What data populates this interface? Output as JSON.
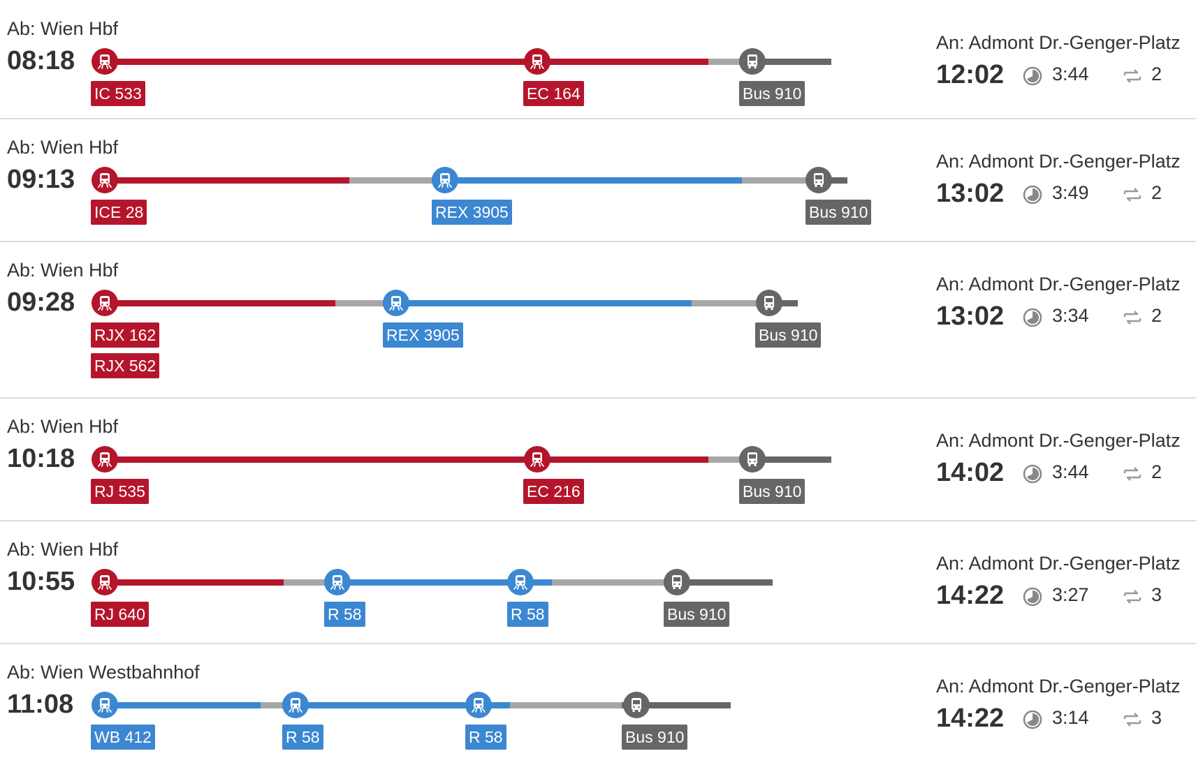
{
  "colors": {
    "red": "#b5152b",
    "blue": "#3c87d1",
    "bus": "#666666",
    "walk": "#a7a7a7"
  },
  "connections": [
    {
      "departure_label": "Ab: Wien Hbf",
      "departure_time": "08:18",
      "arrival_label": "An: Admont Dr.-Genger-Platz",
      "arrival_time": "12:02",
      "duration": "3:44",
      "changes": "2",
      "legs": [
        {
          "train": "IC 533",
          "type": "red-train"
        },
        {
          "train": "EC 164",
          "type": "red-train"
        },
        {
          "train": "Bus 910",
          "type": "bus"
        }
      ]
    },
    {
      "departure_label": "Ab: Wien Hbf",
      "departure_time": "09:13",
      "arrival_label": "An: Admont Dr.-Genger-Platz",
      "arrival_time": "13:02",
      "duration": "3:49",
      "changes": "2",
      "legs": [
        {
          "train": "ICE 28",
          "type": "red-train"
        },
        {
          "train": "REX 3905",
          "type": "blue-train"
        },
        {
          "train": "Bus 910",
          "type": "bus"
        }
      ]
    },
    {
      "departure_label": "Ab: Wien Hbf",
      "departure_time": "09:28",
      "arrival_label": "An: Admont Dr.-Genger-Platz",
      "arrival_time": "13:02",
      "duration": "3:34",
      "changes": "2",
      "legs": [
        {
          "train": "RJX 162",
          "train2": "RJX 562",
          "type": "red-train"
        },
        {
          "train": "REX 3905",
          "type": "blue-train"
        },
        {
          "train": "Bus 910",
          "type": "bus"
        }
      ]
    },
    {
      "departure_label": "Ab: Wien Hbf",
      "departure_time": "10:18",
      "arrival_label": "An: Admont Dr.-Genger-Platz",
      "arrival_time": "14:02",
      "duration": "3:44",
      "changes": "2",
      "legs": [
        {
          "train": "RJ 535",
          "type": "red-train"
        },
        {
          "train": "EC 216",
          "type": "red-train"
        },
        {
          "train": "Bus 910",
          "type": "bus"
        }
      ]
    },
    {
      "departure_label": "Ab: Wien Hbf",
      "departure_time": "10:55",
      "arrival_label": "An: Admont Dr.-Genger-Platz",
      "arrival_time": "14:22",
      "duration": "3:27",
      "changes": "3",
      "legs": [
        {
          "train": "RJ 640",
          "type": "red-train"
        },
        {
          "train": "R 58",
          "type": "blue-train"
        },
        {
          "train": "R 58",
          "type": "blue-train"
        },
        {
          "train": "Bus 910",
          "type": "bus"
        }
      ]
    },
    {
      "departure_label": "Ab: Wien Westbahnhof",
      "departure_time": "11:08",
      "arrival_label": "An: Admont Dr.-Genger-Platz",
      "arrival_time": "14:22",
      "duration": "3:14",
      "changes": "3",
      "legs": [
        {
          "train": "WB 412",
          "type": "blue-train"
        },
        {
          "train": "R 58",
          "type": "blue-train"
        },
        {
          "train": "R 58",
          "type": "blue-train"
        },
        {
          "train": "Bus 910",
          "type": "bus"
        }
      ]
    }
  ]
}
